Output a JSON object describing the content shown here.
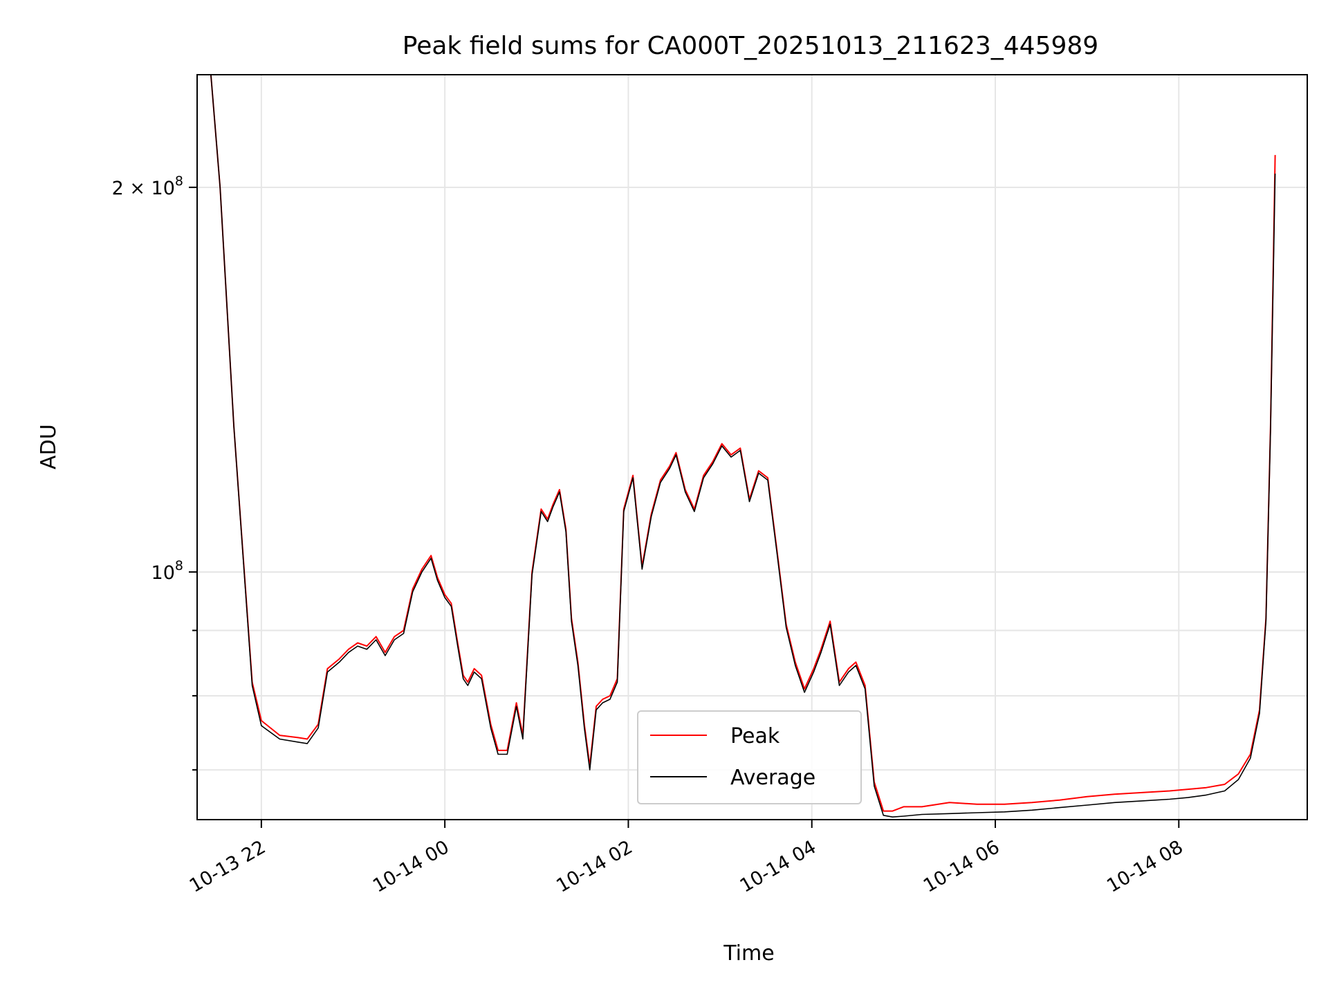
{
  "chart_data": {
    "type": "line",
    "title": "Peak field sums for CA000T_20251013_211623_445989",
    "xlabel": "Time",
    "ylabel": "ADU",
    "yscale": "log",
    "xlim": [
      21.3,
      33.4
    ],
    "ylim": [
      64000000,
      245000000
    ],
    "grid": true,
    "legend_position": "lower-center",
    "x_ticks": [
      {
        "value": 22,
        "label": "10-13 22"
      },
      {
        "value": 24,
        "label": "10-14 00"
      },
      {
        "value": 26,
        "label": "10-14 02"
      },
      {
        "value": 28,
        "label": "10-14 04"
      },
      {
        "value": 30,
        "label": "10-14 06"
      },
      {
        "value": 32,
        "label": "10-14 08"
      }
    ],
    "y_major_ticks": [
      {
        "value": 100000000,
        "base": "10",
        "exp": "8",
        "mult": ""
      },
      {
        "value": 200000000,
        "base": "10",
        "exp": "8",
        "mult": "2 × "
      }
    ],
    "y_minor_ticks": [
      70000000,
      80000000,
      90000000
    ],
    "series": [
      {
        "name": "Peak",
        "color": "#ff0000",
        "x": [
          21.45,
          21.55,
          21.7,
          21.9,
          22.0,
          22.2,
          22.4,
          22.5,
          22.62,
          22.72,
          22.85,
          22.95,
          23.05,
          23.15,
          23.25,
          23.35,
          23.45,
          23.55,
          23.65,
          23.75,
          23.85,
          23.92,
          24.0,
          24.07,
          24.14,
          24.2,
          24.25,
          24.32,
          24.4,
          24.5,
          24.58,
          24.68,
          24.78,
          24.85,
          24.95,
          25.05,
          25.12,
          25.18,
          25.25,
          25.32,
          25.38,
          25.45,
          25.52,
          25.58,
          25.65,
          25.72,
          25.8,
          25.88,
          25.95,
          26.05,
          26.15,
          26.25,
          26.35,
          26.45,
          26.52,
          26.62,
          26.72,
          26.82,
          26.92,
          27.02,
          27.12,
          27.22,
          27.32,
          27.42,
          27.52,
          27.62,
          27.72,
          27.82,
          27.92,
          28.02,
          28.1,
          28.2,
          28.3,
          28.4,
          28.48,
          28.58,
          28.68,
          28.78,
          28.88,
          29.0,
          29.2,
          29.5,
          29.8,
          30.1,
          30.4,
          30.7,
          31.0,
          31.3,
          31.6,
          31.9,
          32.1,
          32.3,
          32.5,
          32.65,
          32.78,
          32.88,
          32.95,
          33.0,
          33.05
        ],
        "values": [
          245000000,
          200000000,
          130000000,
          82000000,
          76500000,
          74500000,
          74200000,
          74000000,
          76000000,
          84000000,
          85500000,
          87000000,
          88000000,
          87500000,
          89000000,
          86500000,
          89000000,
          90000000,
          97000000,
          100500000,
          103000000,
          99000000,
          96000000,
          94500000,
          88000000,
          83000000,
          82000000,
          84000000,
          83000000,
          76000000,
          72500000,
          72500000,
          79000000,
          74500000,
          100000000,
          112000000,
          110000000,
          113000000,
          116000000,
          108000000,
          92000000,
          85000000,
          76000000,
          70500000,
          78500000,
          79500000,
          80000000,
          82500000,
          112000000,
          119000000,
          101000000,
          111000000,
          118000000,
          121000000,
          124000000,
          116000000,
          112000000,
          119000000,
          122000000,
          126000000,
          123500000,
          125000000,
          114000000,
          120000000,
          118500000,
          104000000,
          91000000,
          85000000,
          81000000,
          84000000,
          87000000,
          91500000,
          82000000,
          84000000,
          85000000,
          81500000,
          68500000,
          65000000,
          65000000,
          65500000,
          65500000,
          66000000,
          65800000,
          65800000,
          66000000,
          66300000,
          66700000,
          67000000,
          67200000,
          67400000,
          67600000,
          67800000,
          68200000,
          69500000,
          72000000,
          78000000,
          92000000,
          130000000,
          212000000
        ]
      },
      {
        "name": "Average",
        "color": "#000000",
        "x": [
          21.45,
          21.55,
          21.7,
          21.9,
          22.0,
          22.2,
          22.4,
          22.5,
          22.62,
          22.72,
          22.85,
          22.95,
          23.05,
          23.15,
          23.25,
          23.35,
          23.45,
          23.55,
          23.65,
          23.75,
          23.85,
          23.92,
          24.0,
          24.07,
          24.14,
          24.2,
          24.25,
          24.32,
          24.4,
          24.5,
          24.58,
          24.68,
          24.78,
          24.85,
          24.95,
          25.05,
          25.12,
          25.18,
          25.25,
          25.32,
          25.38,
          25.45,
          25.52,
          25.58,
          25.65,
          25.72,
          25.8,
          25.88,
          25.95,
          26.05,
          26.15,
          26.25,
          26.35,
          26.45,
          26.52,
          26.62,
          26.72,
          26.82,
          26.92,
          27.02,
          27.12,
          27.22,
          27.32,
          27.42,
          27.52,
          27.62,
          27.72,
          27.82,
          27.92,
          28.02,
          28.1,
          28.2,
          28.3,
          28.4,
          28.48,
          28.58,
          28.68,
          28.78,
          28.88,
          29.0,
          29.2,
          29.5,
          29.8,
          30.1,
          30.4,
          30.7,
          31.0,
          31.3,
          31.6,
          31.9,
          32.1,
          32.3,
          32.5,
          32.65,
          32.78,
          32.88,
          32.95,
          33.0,
          33.05
        ],
        "values": [
          245000000,
          200000000,
          130000000,
          81500000,
          75800000,
          74000000,
          73600000,
          73400000,
          75500000,
          83500000,
          85000000,
          86500000,
          87500000,
          87000000,
          88500000,
          86000000,
          88500000,
          89500000,
          96500000,
          100000000,
          102500000,
          98500000,
          95500000,
          94000000,
          87500000,
          82500000,
          81500000,
          83500000,
          82500000,
          75500000,
          72000000,
          72000000,
          78500000,
          74000000,
          99500000,
          111500000,
          109500000,
          112500000,
          115500000,
          107500000,
          91500000,
          84500000,
          75500000,
          70000000,
          78000000,
          79000000,
          79500000,
          82000000,
          111500000,
          118500000,
          100500000,
          110500000,
          117500000,
          120500000,
          123500000,
          115500000,
          111500000,
          118500000,
          121500000,
          125500000,
          123000000,
          124500000,
          113500000,
          119500000,
          118000000,
          103500000,
          90500000,
          84500000,
          80500000,
          83500000,
          86500000,
          91000000,
          81500000,
          83500000,
          84500000,
          81000000,
          68000000,
          64500000,
          64300000,
          64400000,
          64600000,
          64700000,
          64800000,
          64900000,
          65100000,
          65400000,
          65700000,
          66000000,
          66200000,
          66400000,
          66600000,
          66900000,
          67400000,
          68800000,
          71500000,
          77500000,
          91500000,
          129000000,
          205000000
        ]
      }
    ]
  }
}
